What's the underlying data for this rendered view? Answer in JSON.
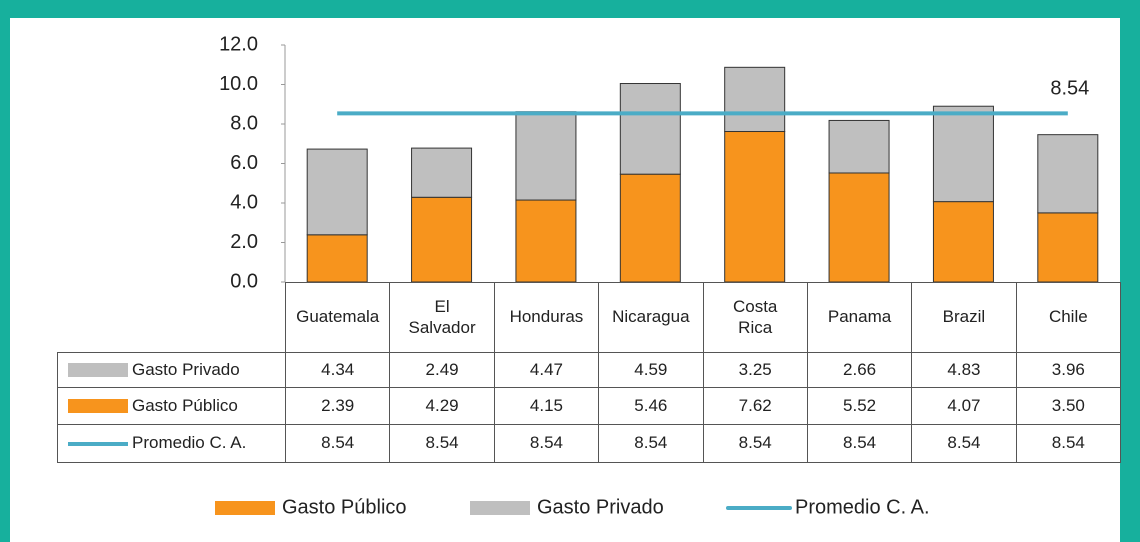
{
  "chart_data": {
    "type": "bar",
    "categories": [
      "Guatemala",
      "El Salvador",
      "Honduras",
      "Nicaragua",
      "Costa Rica",
      "Panama",
      "Brazil",
      "Chile"
    ],
    "series": [
      {
        "name": "Gasto Público",
        "color": "#f7941d",
        "values": [
          2.39,
          4.29,
          4.15,
          5.46,
          7.62,
          5.52,
          4.07,
          3.5
        ],
        "value_labels": [
          "2.39",
          "4.29",
          "4.15",
          "5.46",
          "7.62",
          "5.52",
          "4.07",
          "3.50"
        ]
      },
      {
        "name": "Gasto Privado",
        "color": "#bfbfbf",
        "values": [
          4.34,
          2.49,
          4.47,
          4.59,
          3.25,
          2.66,
          4.83,
          3.96
        ],
        "value_labels": [
          "4.34",
          "2.49",
          "4.47",
          "4.59",
          "3.25",
          "2.66",
          "4.83",
          "3.96"
        ]
      },
      {
        "name": "Promedio C. A.",
        "type": "line",
        "color": "#4bacc6",
        "values": [
          8.54,
          8.54,
          8.54,
          8.54,
          8.54,
          8.54,
          8.54,
          8.54
        ],
        "value_labels": [
          "8.54",
          "8.54",
          "8.54",
          "8.54",
          "8.54",
          "8.54",
          "8.54",
          "8.54"
        ]
      }
    ],
    "stacked": true,
    "ylim": [
      0,
      12
    ],
    "yticks": [
      {
        "value": 0,
        "label": "0.0"
      },
      {
        "value": 2,
        "label": "2.0"
      },
      {
        "value": 4,
        "label": "4.0"
      },
      {
        "value": 6,
        "label": "6.0"
      },
      {
        "value": 8,
        "label": "8.0"
      },
      {
        "value": 10,
        "label": "10.0"
      },
      {
        "value": 12,
        "label": "12.0"
      }
    ],
    "grid": false,
    "legend": "bottom"
  }
}
